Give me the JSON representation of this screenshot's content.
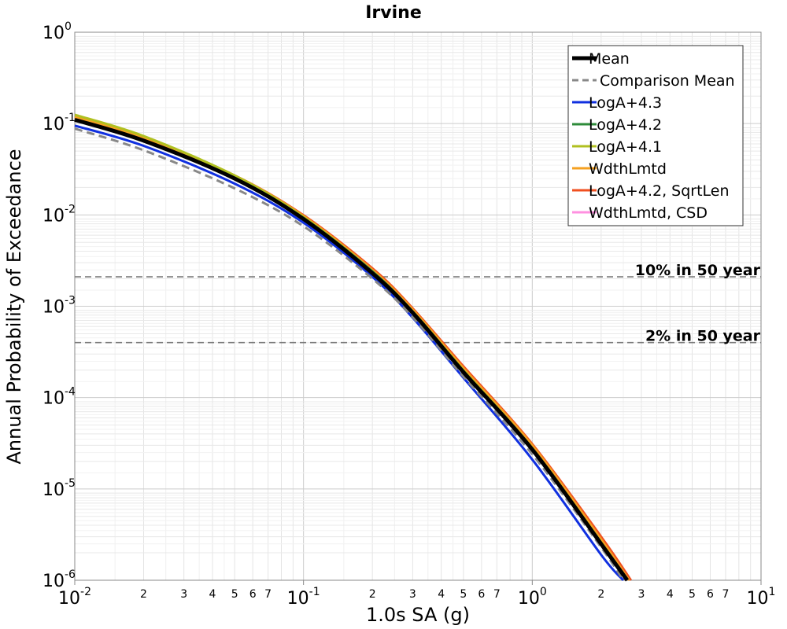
{
  "chart_data": {
    "type": "line",
    "title": "Irvine",
    "xlabel": "1.0s SA (g)",
    "ylabel": "Annual Probability of Exceedance",
    "x_scale": "log",
    "y_scale": "log",
    "xlim": [
      0.01,
      10
    ],
    "ylim": [
      1e-06,
      1
    ],
    "grid": true,
    "legend_position": "top-right",
    "x_major_ticks": [
      {
        "base": "10",
        "exp": "-2"
      },
      {
        "base": "10",
        "exp": "-1"
      },
      {
        "base": "10",
        "exp": "0"
      },
      {
        "base": "10",
        "exp": "1"
      }
    ],
    "y_major_ticks": [
      {
        "base": "10",
        "exp": "0"
      },
      {
        "base": "10",
        "exp": "-1"
      },
      {
        "base": "10",
        "exp": "-2"
      },
      {
        "base": "10",
        "exp": "-3"
      },
      {
        "base": "10",
        "exp": "-4"
      },
      {
        "base": "10",
        "exp": "-5"
      },
      {
        "base": "10",
        "exp": "-6"
      }
    ],
    "x_minor_tick_labels": [
      "2",
      "3",
      "4",
      "5",
      "6",
      "7"
    ],
    "reference_lines": [
      {
        "label": "10% in 50 year",
        "y": 0.0021
      },
      {
        "label": "2% in 50 year",
        "y": 0.0004
      }
    ],
    "series": [
      {
        "name": "Mean",
        "color": "#000000",
        "style": "solid",
        "x": [
          0.01,
          0.02,
          0.05,
          0.1,
          0.2,
          0.3,
          0.5,
          1.0,
          2.0,
          2.6
        ],
        "y": [
          0.11,
          0.065,
          0.025,
          0.009,
          0.0023,
          0.00085,
          0.00019,
          2.7e-05,
          2.5e-06,
          1e-06
        ]
      },
      {
        "name": "Comparison Mean",
        "color": "#888888",
        "style": "dashed",
        "x": [
          0.01,
          0.02,
          0.05,
          0.1,
          0.2,
          0.3,
          0.5,
          1.0,
          2.0,
          2.5
        ],
        "y": [
          0.088,
          0.051,
          0.0195,
          0.0075,
          0.002,
          0.00076,
          0.00017,
          2.4e-05,
          2.3e-06,
          1e-06
        ]
      },
      {
        "name": "LogA+4.3",
        "color": "#1030e0",
        "style": "solid",
        "x": [
          0.01,
          0.02,
          0.05,
          0.1,
          0.2,
          0.3,
          0.5,
          1.0,
          2.0,
          2.5
        ],
        "y": [
          0.095,
          0.057,
          0.022,
          0.0082,
          0.0021,
          0.00075,
          0.000165,
          2.1e-05,
          1.9e-06,
          1e-06
        ]
      },
      {
        "name": "LogA+4.2",
        "color": "#2e8b3a",
        "style": "solid",
        "x": [
          0.01,
          0.02,
          0.05,
          0.1,
          0.2,
          0.3,
          0.5,
          1.0,
          2.0,
          2.6
        ],
        "y": [
          0.112,
          0.066,
          0.0255,
          0.0092,
          0.0024,
          0.00087,
          0.000195,
          2.7e-05,
          2.5e-06,
          1e-06
        ]
      },
      {
        "name": "LogA+4.1",
        "color": "#b0c020",
        "style": "solid",
        "x": [
          0.01,
          0.02,
          0.05,
          0.1,
          0.2,
          0.3,
          0.5,
          1.0,
          2.0,
          2.6
        ],
        "y": [
          0.125,
          0.073,
          0.027,
          0.0095,
          0.0024,
          0.00088,
          0.0002,
          2.8e-05,
          2.6e-06,
          1e-06
        ]
      },
      {
        "name": "WdthLmtd",
        "color": "#f5a020",
        "style": "solid",
        "x": [
          0.01,
          0.02,
          0.05,
          0.1,
          0.2,
          0.3,
          0.5,
          1.0,
          2.0,
          2.65
        ],
        "y": [
          0.118,
          0.07,
          0.027,
          0.0097,
          0.0025,
          0.00092,
          0.00021,
          3e-05,
          2.8e-06,
          1e-06
        ]
      },
      {
        "name": "LogA+4.2, SqrtLen",
        "color": "#f05020",
        "style": "solid",
        "x": [
          0.01,
          0.02,
          0.05,
          0.1,
          0.2,
          0.3,
          0.5,
          1.0,
          2.0,
          2.7
        ],
        "y": [
          0.115,
          0.069,
          0.027,
          0.0099,
          0.0026,
          0.00095,
          0.00022,
          3.1e-05,
          3e-06,
          1e-06
        ]
      },
      {
        "name": "WdthLmtd, CSD",
        "color": "#ff90e0",
        "style": "solid",
        "x": [
          0.01,
          0.02,
          0.05,
          0.1,
          0.2,
          0.3,
          0.5,
          1.0,
          2.0,
          2.6
        ],
        "y": [
          0.11,
          0.065,
          0.025,
          0.009,
          0.0023,
          0.00085,
          0.00019,
          2.7e-05,
          2.5e-06,
          1e-06
        ]
      }
    ]
  }
}
